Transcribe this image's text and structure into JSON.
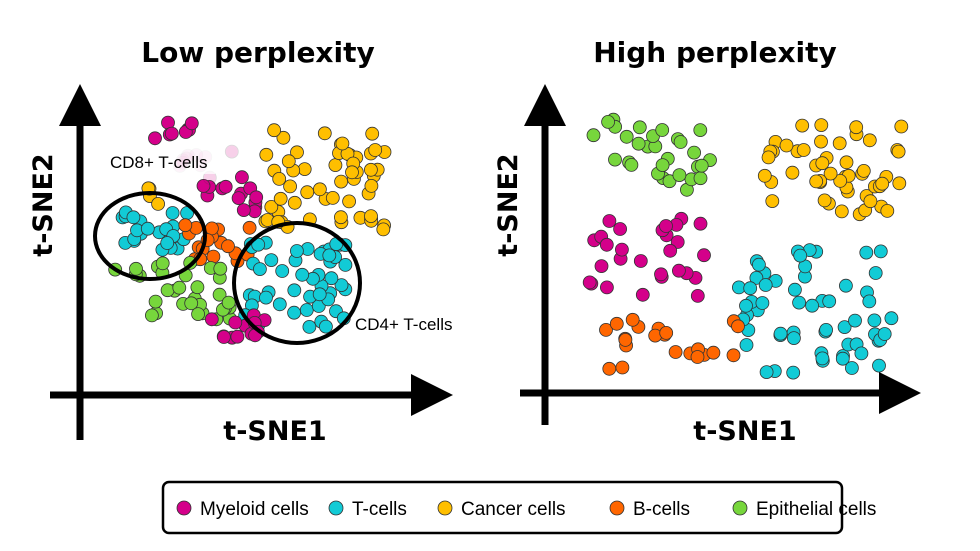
{
  "panels": [
    {
      "title": "Low perplexity",
      "xlabel": "t-SNE1",
      "ylabel": "t-SNE2",
      "annotations": [
        "CD8+ T-cells",
        "CD4+ T-cells"
      ]
    },
    {
      "title": "High perplexity",
      "xlabel": "t-SNE1",
      "ylabel": "t-SNE2"
    }
  ],
  "legend": [
    {
      "label": "Myeloid cells",
      "color": "#d4008a"
    },
    {
      "label": "T-cells",
      "color": "#12cbd6"
    },
    {
      "label": "Cancer cells",
      "color": "#ffbf00"
    },
    {
      "label": "B-cells",
      "color": "#ff6600"
    },
    {
      "label": "Epithelial cells",
      "color": "#77d63c"
    }
  ]
}
